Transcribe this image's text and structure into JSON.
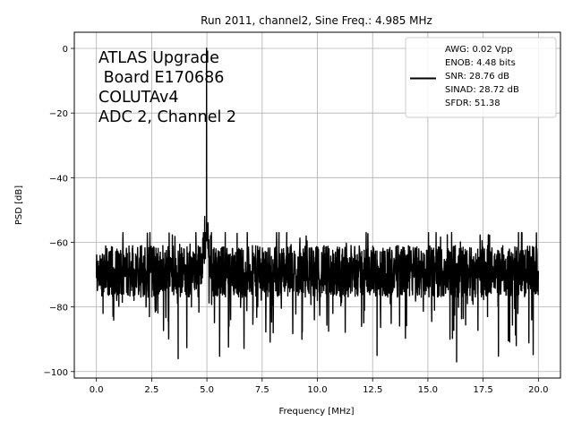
{
  "chart_data": {
    "type": "line",
    "title": "Run 2011, channel2, Sine Freq.: 4.985 MHz",
    "xlabel": "Frequency [MHz]",
    "ylabel": "PSD [dB]",
    "xlim": [
      -1.0,
      21.0
    ],
    "ylim": [
      -102,
      5
    ],
    "xticks": [
      0.0,
      2.5,
      5.0,
      7.5,
      10.0,
      12.5,
      15.0,
      17.5,
      20.0
    ],
    "xtick_labels": [
      "0.0",
      "2.5",
      "5.0",
      "7.5",
      "10.0",
      "12.5",
      "15.0",
      "17.5",
      "20.0"
    ],
    "yticks": [
      0,
      -20,
      -40,
      -60,
      -80,
      -100
    ],
    "ytick_labels": [
      "0",
      "−20",
      "−40",
      "−60",
      "−80",
      "−100"
    ],
    "grid": true,
    "annotation": [
      "ATLAS Upgrade",
      " Board E170686",
      "COLUTAv4",
      "ADC 2, Channel 2"
    ],
    "legend": {
      "placement": "top-right",
      "lines": [
        "AWG: 0.02 Vpp",
        "ENOB: 4.48 bits",
        "SNR: 28.76 dB",
        "SINAD: 28.72 dB",
        "SFDR: 51.38"
      ]
    },
    "series": [
      {
        "color": "#000000",
        "noise_floor_db": -69,
        "noise_range_db": [
          -97,
          -57
        ],
        "peak": {
          "x": 4.985,
          "y": 0
        },
        "x": [
          0.0,
          0.3,
          0.6,
          1.0,
          1.3,
          1.7,
          2.0,
          2.4,
          2.7,
          3.0,
          3.3,
          3.7,
          4.0,
          4.3,
          4.6,
          4.8,
          4.9,
          4.985,
          5.05,
          5.2,
          5.4,
          5.7,
          6.0,
          6.3,
          6.6,
          7.0,
          7.3,
          7.6,
          8.0,
          8.3,
          8.7,
          9.0,
          9.3,
          9.7,
          10.0,
          10.3,
          10.7,
          11.0,
          11.3,
          11.7,
          12.0,
          12.4,
          12.7,
          13.0,
          13.3,
          13.7,
          14.0,
          14.3,
          14.7,
          15.0,
          15.3,
          15.7,
          16.0,
          16.3,
          16.7,
          17.0,
          17.3,
          17.7,
          18.0,
          18.3,
          18.7,
          19.0,
          19.4,
          19.7,
          20.0
        ],
        "y": [
          -66,
          -82,
          -69,
          -76,
          -68,
          -78,
          -70,
          -83,
          -69,
          -75,
          -67,
          -96,
          -71,
          -80,
          -68,
          -64,
          -52,
          0,
          -54,
          -62,
          -72,
          -68,
          -86,
          -70,
          -77,
          -69,
          -80,
          -71,
          -88,
          -68,
          -74,
          -70,
          -90,
          -69,
          -78,
          -70,
          -82,
          -68,
          -76,
          -71,
          -86,
          -68,
          -95,
          -70,
          -79,
          -69,
          -84,
          -70,
          -77,
          -68,
          -81,
          -69,
          -90,
          -97,
          -70,
          -78,
          -69,
          -83,
          -70,
          -76,
          -68,
          -92,
          -70,
          -84,
          -69
        ]
      }
    ]
  }
}
